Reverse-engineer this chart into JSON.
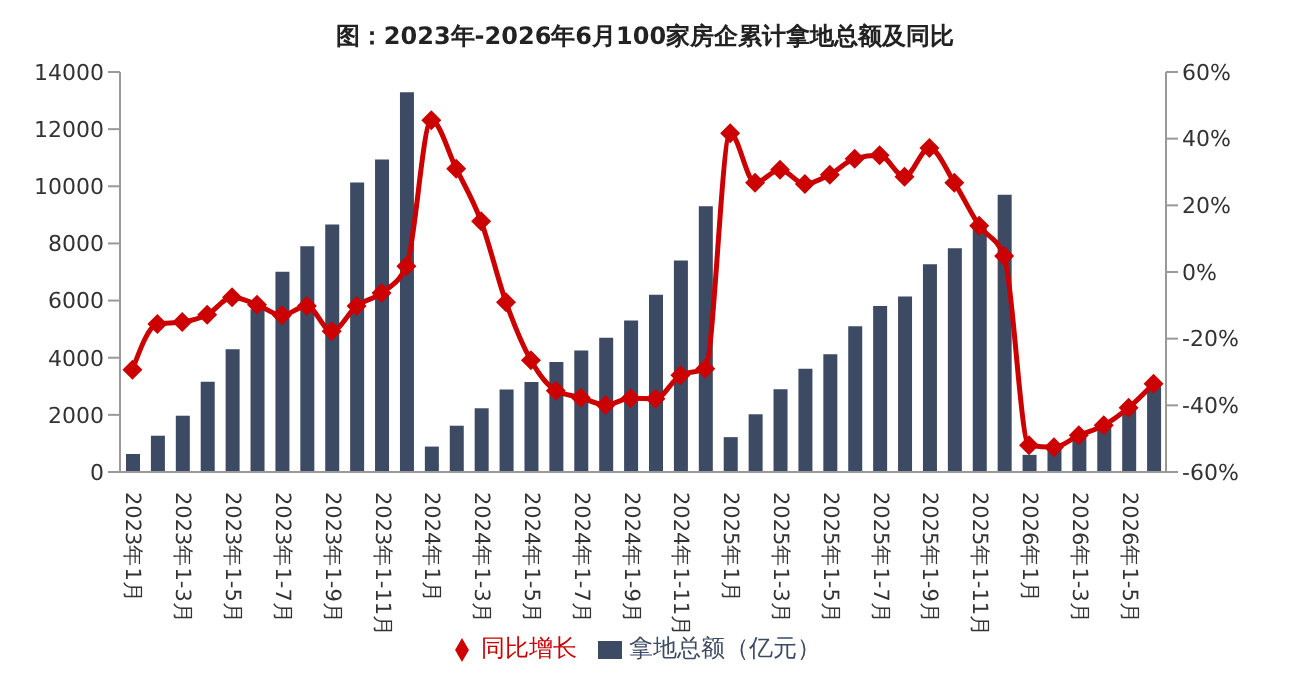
{
  "chart_data": {
    "type": "bar",
    "title": "图：2023年-2026年6月100家房企累计拿地总额及同比",
    "categories": [
      "2023年1月",
      null,
      "2023年1-3月",
      null,
      "2023年1-5月",
      null,
      "2023年1-7月",
      null,
      "2023年1-9月",
      null,
      "2023年1-11月",
      null,
      "2024年1月",
      null,
      "2024年1-3月",
      null,
      "2024年1-5月",
      null,
      "2024年1-7月",
      null,
      "2024年1-9月",
      null,
      "2024年1-11月",
      null,
      "2025年1月",
      null,
      "2025年1-3月",
      null,
      "2025年1-5月",
      null,
      "2025年1-7月",
      null,
      "2025年1-9月",
      null,
      "2025年1-11月",
      null,
      "2026年1月",
      null,
      "2026年1-3月",
      null,
      "2026年1-5月",
      null
    ],
    "series": [
      {
        "name": "拿地总额（亿元）",
        "color": "#3d4a63",
        "values": [
          630,
          1270,
          1970,
          3160,
          4300,
          5700,
          7010,
          7900,
          8660,
          10130,
          10940,
          13290,
          890,
          1620,
          2230,
          2890,
          3150,
          3850,
          4250,
          4700,
          5300,
          6200,
          7400,
          9300,
          1220,
          2020,
          2900,
          3610,
          4120,
          5100,
          5810,
          6140,
          7270,
          7830,
          8540,
          9700,
          600,
          900,
          1200,
          1600,
          2200,
          3000
        ]
      },
      {
        "name": "同比增长",
        "type": "line",
        "axis": "y2",
        "color": "#cc0000",
        "marker": "diamond",
        "values": [
          -29.3,
          -15.6,
          -15,
          -12.8,
          -7.6,
          -9.8,
          -13,
          -10.2,
          -17.8,
          -10.2,
          -6.3,
          1.7,
          45.5,
          31,
          15.2,
          -9.1,
          -26.5,
          -35.6,
          -37.7,
          -39.9,
          -37.9,
          -38,
          -31,
          -29,
          41.6,
          26.8,
          30.7,
          26.4,
          29.2,
          34,
          35,
          28.6,
          37.2,
          26.8,
          13.9,
          4.8,
          -52,
          -52.6,
          -49,
          -46,
          -40.7,
          -33.5
        ]
      }
    ],
    "ylim": [
      0,
      14000
    ],
    "yticks": [
      0,
      2000,
      4000,
      6000,
      8000,
      10000,
      12000,
      14000
    ],
    "y2lim": [
      -60,
      60
    ],
    "y2ticks": [
      {
        "value": -60,
        "label": "-60%"
      },
      {
        "value": -40,
        "label": "-40%"
      },
      {
        "value": -20,
        "label": "-20%"
      },
      {
        "value": 0,
        "label": "0%"
      },
      {
        "value": 20,
        "label": "20%"
      },
      {
        "value": 40,
        "label": "40%"
      },
      {
        "value": 60,
        "label": "60%"
      }
    ],
    "legend": "bottom",
    "grid": false
  }
}
